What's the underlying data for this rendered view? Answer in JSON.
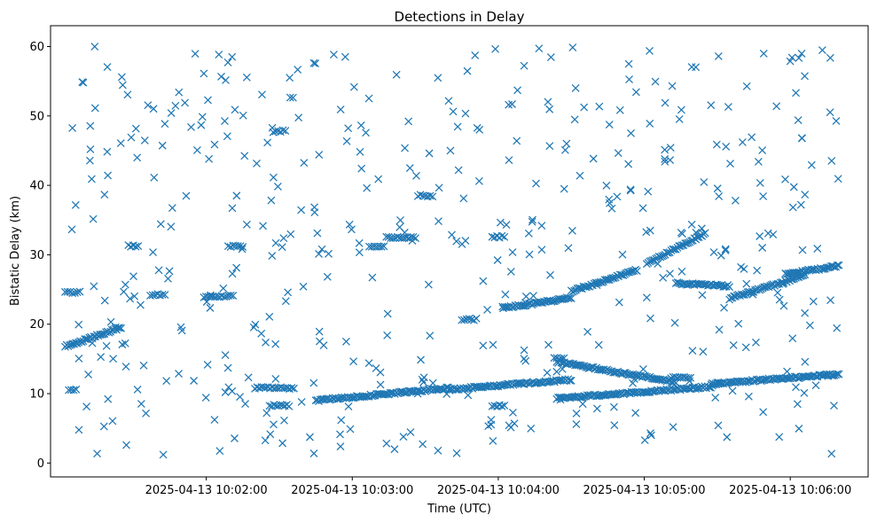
{
  "chart_data": {
    "type": "scatter",
    "title": "Detections in Delay",
    "xlabel": "Time (UTC)",
    "ylabel": "Bistatic Delay (km)",
    "xlim": [
      "2025-04-13 10:00:56",
      "2025-04-13 10:06:32"
    ],
    "ylim": [
      -2,
      63
    ],
    "grid": false,
    "marker": "x",
    "color": "#1f77b4",
    "x_ticks": [
      "2025-04-13 10:02:00",
      "2025-04-13 10:03:00",
      "2025-04-13 10:04:00",
      "2025-04-13 10:05:00",
      "2025-04-13 10:06:00"
    ],
    "y_ticks": [
      0,
      10,
      20,
      30,
      40,
      50,
      60
    ],
    "tracks": [
      {
        "start": "2025-04-13 10:01:02",
        "end": "2025-04-13 10:01:25",
        "y_start": 16.8,
        "y_end": 19.5
      },
      {
        "start": "2025-04-13 10:02:45",
        "end": "2025-04-13 10:03:40",
        "y_start": 9.0,
        "y_end": 10.8
      },
      {
        "start": "2025-04-13 10:03:40",
        "end": "2025-04-13 10:04:30",
        "y_start": 10.6,
        "y_end": 12.0
      },
      {
        "start": "2025-04-13 10:04:02",
        "end": "2025-04-13 10:04:30",
        "y_start": 22.3,
        "y_end": 23.8
      },
      {
        "start": "2025-04-13 10:04:30",
        "end": "2025-04-13 10:04:57",
        "y_start": 24.7,
        "y_end": 27.8
      },
      {
        "start": "2025-04-13 10:05:01",
        "end": "2025-04-13 10:05:25",
        "y_start": 28.8,
        "y_end": 33.0
      },
      {
        "start": "2025-04-13 10:04:24",
        "end": "2025-04-13 10:05:13",
        "y_start": 14.6,
        "y_end": 11.6
      },
      {
        "start": "2025-04-13 10:04:24",
        "end": "2025-04-13 10:05:28",
        "y_start": 9.3,
        "y_end": 11.0
      },
      {
        "start": "2025-04-13 10:05:13",
        "end": "2025-04-13 10:05:35",
        "y_start": 25.9,
        "y_end": 25.5
      },
      {
        "start": "2025-04-13 10:05:35",
        "end": "2025-04-13 10:06:06",
        "y_start": 23.7,
        "y_end": 27.0
      },
      {
        "start": "2025-04-13 10:05:28",
        "end": "2025-04-13 10:06:20",
        "y_start": 11.4,
        "y_end": 12.8
      },
      {
        "start": "2025-04-13 10:05:58",
        "end": "2025-04-13 10:06:20",
        "y_start": 27.2,
        "y_end": 28.4
      }
    ],
    "clusters": [
      {
        "time": "2025-04-13 10:01:30",
        "y": 31.3,
        "span_s": 4
      },
      {
        "time": "2025-04-13 10:01:05",
        "y": 24.6,
        "span_s": 6
      },
      {
        "time": "2025-04-13 10:01:05",
        "y": 10.5,
        "span_s": 3
      },
      {
        "time": "2025-04-13 10:01:40",
        "y": 24.2,
        "span_s": 6
      },
      {
        "time": "2025-04-13 10:02:05",
        "y": 24.0,
        "span_s": 12
      },
      {
        "time": "2025-04-13 10:02:12",
        "y": 31.2,
        "span_s": 6
      },
      {
        "time": "2025-04-13 10:02:30",
        "y": 47.8,
        "span_s": 5
      },
      {
        "time": "2025-04-13 10:02:30",
        "y": 8.3,
        "span_s": 8
      },
      {
        "time": "2025-04-13 10:02:28",
        "y": 10.8,
        "span_s": 16
      },
      {
        "time": "2025-04-13 10:03:10",
        "y": 31.2,
        "span_s": 6
      },
      {
        "time": "2025-04-13 10:03:20",
        "y": 32.5,
        "span_s": 12
      },
      {
        "time": "2025-04-13 10:03:30",
        "y": 38.5,
        "span_s": 6
      },
      {
        "time": "2025-04-13 10:03:48",
        "y": 20.7,
        "span_s": 6
      },
      {
        "time": "2025-04-13 10:04:00",
        "y": 32.6,
        "span_s": 5
      },
      {
        "time": "2025-04-13 10:04:00",
        "y": 8.3,
        "span_s": 5
      },
      {
        "time": "2025-04-13 10:04:25",
        "y": 15.1,
        "span_s": 4
      },
      {
        "time": "2025-04-13 10:05:30",
        "y": 11.4,
        "span_s": 5
      },
      {
        "time": "2025-04-13 10:05:15",
        "y": 12.3,
        "span_s": 8
      }
    ],
    "scattered": {
      "count": 470,
      "x_range": [
        "2025-04-13 10:01:02",
        "2025-04-13 10:06:20"
      ],
      "y_range": [
        1,
        60
      ]
    }
  }
}
